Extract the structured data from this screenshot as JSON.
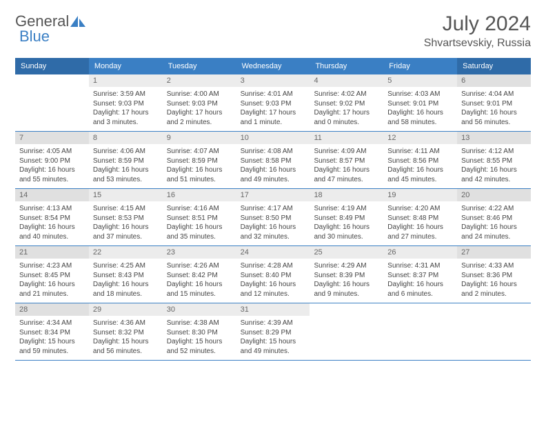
{
  "logo": {
    "text1": "General",
    "text2": "Blue"
  },
  "title": "July 2024",
  "location": "Shvartsevskiy, Russia",
  "colors": {
    "header_bg": "#3a7fc4",
    "header_weekend_bg": "#2f6ba8",
    "daynum_bg": "#ececec",
    "daynum_weekend_bg": "#e0e0e0",
    "border": "#3a7fc4",
    "text": "#444444"
  },
  "weekdays": [
    "Sunday",
    "Monday",
    "Tuesday",
    "Wednesday",
    "Thursday",
    "Friday",
    "Saturday"
  ],
  "weeks": [
    [
      null,
      {
        "n": "1",
        "sr": "3:59 AM",
        "ss": "9:03 PM",
        "dl": "17 hours and 3 minutes."
      },
      {
        "n": "2",
        "sr": "4:00 AM",
        "ss": "9:03 PM",
        "dl": "17 hours and 2 minutes."
      },
      {
        "n": "3",
        "sr": "4:01 AM",
        "ss": "9:03 PM",
        "dl": "17 hours and 1 minute."
      },
      {
        "n": "4",
        "sr": "4:02 AM",
        "ss": "9:02 PM",
        "dl": "17 hours and 0 minutes."
      },
      {
        "n": "5",
        "sr": "4:03 AM",
        "ss": "9:01 PM",
        "dl": "16 hours and 58 minutes."
      },
      {
        "n": "6",
        "sr": "4:04 AM",
        "ss": "9:01 PM",
        "dl": "16 hours and 56 minutes."
      }
    ],
    [
      {
        "n": "7",
        "sr": "4:05 AM",
        "ss": "9:00 PM",
        "dl": "16 hours and 55 minutes."
      },
      {
        "n": "8",
        "sr": "4:06 AM",
        "ss": "8:59 PM",
        "dl": "16 hours and 53 minutes."
      },
      {
        "n": "9",
        "sr": "4:07 AM",
        "ss": "8:59 PM",
        "dl": "16 hours and 51 minutes."
      },
      {
        "n": "10",
        "sr": "4:08 AM",
        "ss": "8:58 PM",
        "dl": "16 hours and 49 minutes."
      },
      {
        "n": "11",
        "sr": "4:09 AM",
        "ss": "8:57 PM",
        "dl": "16 hours and 47 minutes."
      },
      {
        "n": "12",
        "sr": "4:11 AM",
        "ss": "8:56 PM",
        "dl": "16 hours and 45 minutes."
      },
      {
        "n": "13",
        "sr": "4:12 AM",
        "ss": "8:55 PM",
        "dl": "16 hours and 42 minutes."
      }
    ],
    [
      {
        "n": "14",
        "sr": "4:13 AM",
        "ss": "8:54 PM",
        "dl": "16 hours and 40 minutes."
      },
      {
        "n": "15",
        "sr": "4:15 AM",
        "ss": "8:53 PM",
        "dl": "16 hours and 37 minutes."
      },
      {
        "n": "16",
        "sr": "4:16 AM",
        "ss": "8:51 PM",
        "dl": "16 hours and 35 minutes."
      },
      {
        "n": "17",
        "sr": "4:17 AM",
        "ss": "8:50 PM",
        "dl": "16 hours and 32 minutes."
      },
      {
        "n": "18",
        "sr": "4:19 AM",
        "ss": "8:49 PM",
        "dl": "16 hours and 30 minutes."
      },
      {
        "n": "19",
        "sr": "4:20 AM",
        "ss": "8:48 PM",
        "dl": "16 hours and 27 minutes."
      },
      {
        "n": "20",
        "sr": "4:22 AM",
        "ss": "8:46 PM",
        "dl": "16 hours and 24 minutes."
      }
    ],
    [
      {
        "n": "21",
        "sr": "4:23 AM",
        "ss": "8:45 PM",
        "dl": "16 hours and 21 minutes."
      },
      {
        "n": "22",
        "sr": "4:25 AM",
        "ss": "8:43 PM",
        "dl": "16 hours and 18 minutes."
      },
      {
        "n": "23",
        "sr": "4:26 AM",
        "ss": "8:42 PM",
        "dl": "16 hours and 15 minutes."
      },
      {
        "n": "24",
        "sr": "4:28 AM",
        "ss": "8:40 PM",
        "dl": "16 hours and 12 minutes."
      },
      {
        "n": "25",
        "sr": "4:29 AM",
        "ss": "8:39 PM",
        "dl": "16 hours and 9 minutes."
      },
      {
        "n": "26",
        "sr": "4:31 AM",
        "ss": "8:37 PM",
        "dl": "16 hours and 6 minutes."
      },
      {
        "n": "27",
        "sr": "4:33 AM",
        "ss": "8:36 PM",
        "dl": "16 hours and 2 minutes."
      }
    ],
    [
      {
        "n": "28",
        "sr": "4:34 AM",
        "ss": "8:34 PM",
        "dl": "15 hours and 59 minutes."
      },
      {
        "n": "29",
        "sr": "4:36 AM",
        "ss": "8:32 PM",
        "dl": "15 hours and 56 minutes."
      },
      {
        "n": "30",
        "sr": "4:38 AM",
        "ss": "8:30 PM",
        "dl": "15 hours and 52 minutes."
      },
      {
        "n": "31",
        "sr": "4:39 AM",
        "ss": "8:29 PM",
        "dl": "15 hours and 49 minutes."
      },
      null,
      null,
      null
    ]
  ],
  "labels": {
    "sunrise": "Sunrise:",
    "sunset": "Sunset:",
    "daylight": "Daylight:"
  }
}
